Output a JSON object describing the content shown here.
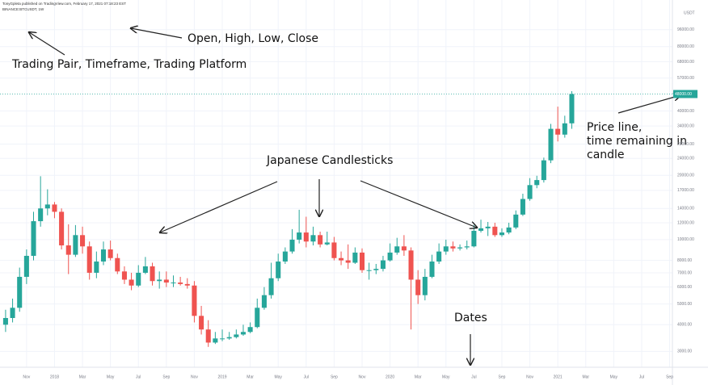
{
  "header": {
    "line1": "TonyGpleta published on TradingView.com, February 17, 2021 07:18:23 EST",
    "line2": "BINANCE:BTCUSDT, 1W"
  },
  "annotations": {
    "ohlc": "Open, High, Low, Close",
    "pair": "Trading Pair, Timeframe, Trading Platform",
    "candles": "Japanese Candlesticks",
    "price_line": [
      "Price line,",
      "time remaining in",
      "candle"
    ],
    "dates": "Dates"
  },
  "chart_data": {
    "type": "candlestick",
    "log_scale": true,
    "grid": true,
    "up_color": "#26a69a",
    "down_color": "#ef5350",
    "y_axis_unit": "USDT",
    "xlim": [
      -1.9,
      46.2
    ],
    "ylim": [
      2530,
      116000
    ],
    "xticks": [
      {
        "value": 0,
        "label": "Nov"
      },
      {
        "value": 2,
        "label": "2018"
      },
      {
        "value": 4,
        "label": "Mar"
      },
      {
        "value": 6,
        "label": "May"
      },
      {
        "value": 8,
        "label": "Jul"
      },
      {
        "value": 10,
        "label": "Sep"
      },
      {
        "value": 12,
        "label": "Nov"
      },
      {
        "value": 14,
        "label": "2019"
      },
      {
        "value": 16,
        "label": "Mar"
      },
      {
        "value": 18,
        "label": "May"
      },
      {
        "value": 20,
        "label": "Jul"
      },
      {
        "value": 22,
        "label": "Sep"
      },
      {
        "value": 24,
        "label": "Nov"
      },
      {
        "value": 26,
        "label": "2020"
      },
      {
        "value": 28,
        "label": "Mar"
      },
      {
        "value": 30,
        "label": "May"
      },
      {
        "value": 32,
        "label": "Jul"
      },
      {
        "value": 34,
        "label": "Sep"
      },
      {
        "value": 36,
        "label": "Nov"
      },
      {
        "value": 38,
        "label": "2021"
      },
      {
        "value": 40,
        "label": "Mar"
      },
      {
        "value": 42,
        "label": "May"
      },
      {
        "value": 44,
        "label": "Jul"
      },
      {
        "value": 46,
        "label": "Sep"
      }
    ],
    "yticks": [
      {
        "value": 3000,
        "label": "3000.00"
      },
      {
        "value": 4000,
        "label": "4000.00"
      },
      {
        "value": 5000,
        "label": "5000.00"
      },
      {
        "value": 6000,
        "label": "6000.00"
      },
      {
        "value": 7000,
        "label": "7000.00"
      },
      {
        "value": 8000,
        "label": "8000.00"
      },
      {
        "value": 10000,
        "label": "10000.00"
      },
      {
        "value": 12000,
        "label": "12000.00"
      },
      {
        "value": 14000,
        "label": "14000.00"
      },
      {
        "value": 17000,
        "label": "17000.00"
      },
      {
        "value": 20000,
        "label": "20000.00"
      },
      {
        "value": 24000,
        "label": "24000.00"
      },
      {
        "value": 28000,
        "label": "28000.00"
      },
      {
        "value": 34000,
        "label": "34000.00"
      },
      {
        "value": 40000,
        "label": "40000.00"
      },
      {
        "value": 57000,
        "label": "57000.00"
      },
      {
        "value": 68000,
        "label": "68000.00"
      },
      {
        "value": 80000,
        "label": "80000.00"
      },
      {
        "value": 96000,
        "label": "96000.00"
      }
    ],
    "price_line": {
      "value": 48000,
      "label": "48000.00"
    },
    "x": [
      -1.5,
      -1,
      -0.5,
      0,
      0.5,
      1,
      1.5,
      2,
      2.5,
      3,
      3.5,
      4,
      4.5,
      5,
      5.5,
      6,
      6.5,
      7,
      7.5,
      8,
      8.5,
      9,
      9.5,
      10,
      10.5,
      11,
      11.5,
      12,
      12.5,
      13,
      13.5,
      14,
      14.5,
      15,
      15.5,
      16,
      16.5,
      17,
      17.5,
      18,
      18.5,
      19,
      19.5,
      20,
      20.5,
      21,
      21.5,
      22,
      22.5,
      23,
      23.5,
      24,
      24.5,
      25,
      25.5,
      26,
      26.5,
      27,
      27.5,
      28,
      28.5,
      29,
      29.5,
      30,
      30.5,
      31,
      31.5,
      32,
      32.5,
      33,
      33.5,
      34,
      34.5,
      35,
      35.5,
      36,
      36.5,
      37,
      37.5,
      38,
      38.5,
      39
    ],
    "open": [
      4000,
      4300,
      4800,
      6700,
      8400,
      12200,
      14000,
      14600,
      13500,
      9400,
      8500,
      10500,
      9300,
      7000,
      7900,
      9000,
      8200,
      7100,
      6500,
      6100,
      7000,
      7500,
      6400,
      6500,
      6300,
      6300,
      6200,
      6100,
      4400,
      3800,
      3300,
      3450,
      3450,
      3500,
      3600,
      3700,
      3900,
      4800,
      5500,
      6600,
      7900,
      8800,
      10000,
      10800,
      9800,
      10500,
      9500,
      9700,
      8200,
      8000,
      7800,
      8700,
      7200,
      7200,
      7300,
      8000,
      8700,
      9300,
      8900,
      6500,
      5500,
      6700,
      7900,
      8800,
      9300,
      9100,
      9200,
      9300,
      11000,
      11300,
      11500,
      10500,
      10800,
      11400,
      13100,
      15500,
      18000,
      19000,
      23500,
      33000,
      31000,
      35000
    ],
    "high": [
      4700,
      5300,
      7400,
      9000,
      13500,
      19800,
      17200,
      15000,
      14000,
      11800,
      11700,
      11500,
      9800,
      8800,
      9800,
      9900,
      8600,
      7500,
      7000,
      7600,
      8300,
      7800,
      7100,
      7100,
      6800,
      6700,
      6600,
      6400,
      4900,
      4200,
      3700,
      3800,
      3700,
      3800,
      4000,
      4100,
      5300,
      6000,
      7800,
      8600,
      9200,
      11200,
      13800,
      12800,
      11500,
      10900,
      10900,
      10300,
      8800,
      9500,
      9200,
      9100,
      7800,
      7700,
      8400,
      9600,
      10200,
      10500,
      9200,
      7200,
      7300,
      8500,
      9600,
      10000,
      9800,
      9500,
      9900,
      11700,
      12400,
      12100,
      12000,
      11300,
      12000,
      13700,
      16400,
      19400,
      19900,
      24200,
      34800,
      41900,
      38000,
      49500
    ],
    "low": [
      3700,
      4100,
      4600,
      6200,
      8000,
      11500,
      13000,
      12600,
      9000,
      6900,
      8300,
      8600,
      6500,
      6600,
      7600,
      8000,
      6900,
      6200,
      5800,
      6000,
      6900,
      6100,
      5900,
      6000,
      6000,
      6100,
      5900,
      4100,
      3600,
      3150,
      3250,
      3350,
      3400,
      3450,
      3550,
      3650,
      3850,
      4700,
      5300,
      6400,
      7700,
      8600,
      9600,
      9200,
      9400,
      9200,
      9400,
      8000,
      7600,
      7300,
      7700,
      7000,
      6500,
      6900,
      7100,
      7900,
      8500,
      8400,
      3800,
      5000,
      5200,
      6600,
      7700,
      8500,
      8800,
      8900,
      9000,
      9200,
      10800,
      10400,
      10300,
      10300,
      10600,
      11200,
      12900,
      15200,
      17400,
      18500,
      22800,
      28800,
      30000,
      33000
    ],
    "close": [
      4300,
      4800,
      6700,
      8400,
      12200,
      14000,
      14600,
      13500,
      9400,
      8500,
      10500,
      9300,
      7000,
      7900,
      9000,
      8200,
      7100,
      6500,
      6100,
      7000,
      7500,
      6400,
      6500,
      6300,
      6300,
      6200,
      6100,
      4400,
      3800,
      3300,
      3450,
      3450,
      3500,
      3600,
      3700,
      3900,
      4800,
      5500,
      6600,
      7900,
      8800,
      10000,
      10800,
      9800,
      10500,
      9500,
      9700,
      8200,
      8000,
      7800,
      8700,
      7200,
      7200,
      7300,
      8000,
      8700,
      9300,
      8900,
      6500,
      5500,
      6700,
      7900,
      8800,
      9300,
      9100,
      9200,
      9300,
      11000,
      11300,
      11500,
      10500,
      10800,
      11400,
      13100,
      15500,
      18000,
      19000,
      23500,
      33000,
      31000,
      35000,
      48000
    ]
  }
}
